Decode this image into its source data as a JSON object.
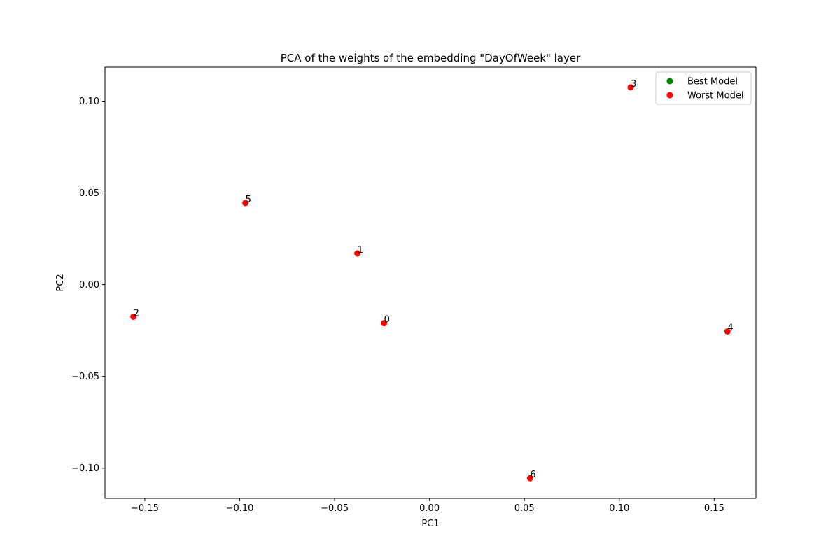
{
  "chart_data": {
    "type": "scatter",
    "title": "PCA of the weights of the embedding \"DayOfWeek\" layer",
    "xlabel": "PC1",
    "ylabel": "PC2",
    "xlim": [
      -0.171,
      0.172
    ],
    "ylim": [
      -0.1165,
      0.1185
    ],
    "xticks": [
      -0.15,
      -0.1,
      -0.05,
      0.0,
      0.05,
      0.1,
      0.15
    ],
    "xtick_labels": [
      "−0.15",
      "−0.10",
      "−0.05",
      "0.00",
      "0.05",
      "0.10",
      "0.15"
    ],
    "yticks": [
      -0.1,
      -0.05,
      0.0,
      0.05,
      0.1
    ],
    "ytick_labels": [
      "−0.10",
      "−0.05",
      "0.00",
      "0.05",
      "0.10"
    ],
    "legend_position": "top-right",
    "series": [
      {
        "name": "Best Model",
        "color": "#008000",
        "points": []
      },
      {
        "name": "Worst Model",
        "color": "#ff0000",
        "points": [
          {
            "label": "0",
            "x": -0.024,
            "y": -0.021
          },
          {
            "label": "1",
            "x": -0.038,
            "y": 0.017
          },
          {
            "label": "2",
            "x": -0.156,
            "y": -0.0175
          },
          {
            "label": "3",
            "x": 0.106,
            "y": 0.1075
          },
          {
            "label": "4",
            "x": 0.157,
            "y": -0.0255
          },
          {
            "label": "5",
            "x": -0.097,
            "y": 0.0445
          },
          {
            "label": "6",
            "x": 0.053,
            "y": -0.1055
          }
        ]
      }
    ]
  }
}
